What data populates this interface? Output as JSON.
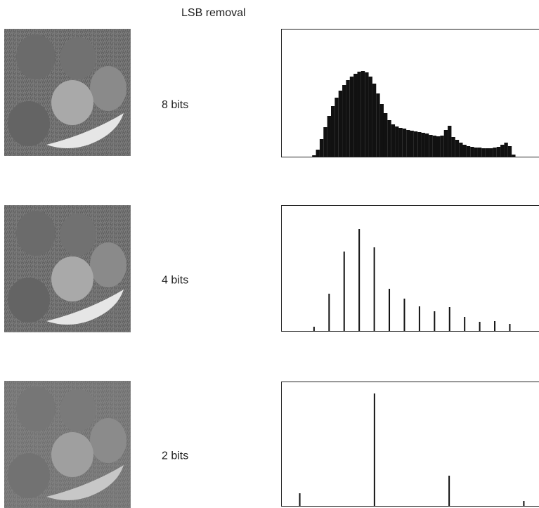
{
  "title": "LSB removal",
  "chart_data": [
    {
      "type": "histogram",
      "label": "8 bits",
      "color": "#111111",
      "bins": [
        26,
        30,
        34,
        38,
        42,
        46,
        50,
        54,
        58,
        62,
        66,
        70,
        74,
        78,
        82,
        86,
        90,
        94,
        98,
        102,
        106,
        110,
        114,
        118,
        122,
        126,
        130,
        134,
        138,
        142,
        146,
        150,
        154,
        158,
        162,
        166,
        170,
        174,
        178,
        182,
        186,
        190,
        194,
        198,
        202,
        206,
        210,
        214,
        218,
        222,
        226,
        230,
        234,
        238,
        242,
        246,
        250
      ],
      "values": [
        0,
        2,
        10,
        25,
        42,
        58,
        72,
        84,
        94,
        102,
        109,
        114,
        118,
        121,
        122,
        120,
        114,
        104,
        90,
        75,
        62,
        52,
        46,
        43,
        41,
        40,
        38,
        37,
        36,
        35,
        34,
        33,
        31,
        30,
        29,
        30,
        38,
        44,
        28,
        24,
        20,
        17,
        15,
        14,
        13,
        13,
        12,
        12,
        12,
        13,
        14,
        17,
        20,
        15,
        3,
        0
      ],
      "xlim": [
        -3,
        271
      ],
      "ylim": [
        0,
        182
      ]
    },
    {
      "type": "stem",
      "label": "4 bits",
      "color": "#111111",
      "x": [
        32,
        48,
        64,
        80,
        96,
        112,
        128,
        144,
        160,
        176,
        192,
        208,
        224,
        240
      ],
      "values": [
        6,
        53,
        113,
        145,
        119,
        60,
        46,
        35,
        28,
        34,
        20,
        13,
        14,
        10
      ],
      "xlim": [
        -3,
        271
      ],
      "ylim": [
        0,
        179
      ]
    },
    {
      "type": "stem",
      "label": "2 bits",
      "color": "#111111",
      "x": [
        0,
        64,
        128,
        192
      ],
      "values": [
        18,
        160,
        43,
        7
      ],
      "xlim": [
        -16,
        205
      ],
      "ylim": [
        0,
        177
      ]
    }
  ]
}
